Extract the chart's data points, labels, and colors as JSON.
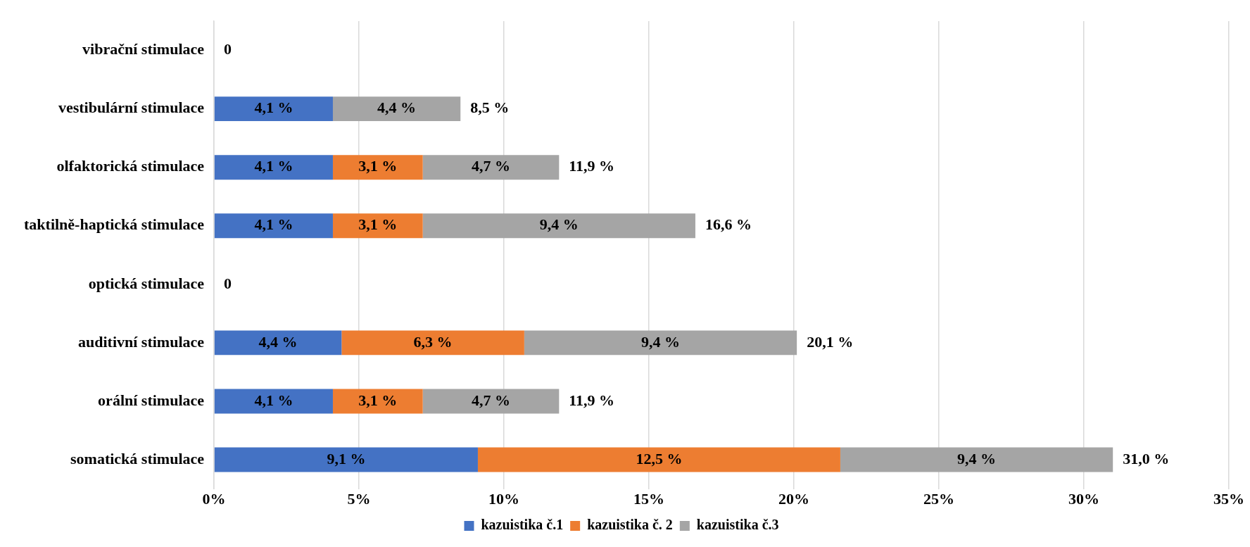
{
  "chart_data": {
    "type": "bar",
    "orientation": "horizontal",
    "stacked": true,
    "categories": [
      "vibrační stimulace",
      "vestibulární stimulace",
      "olfaktorická stimulace",
      "taktilně-haptická stimulace",
      "optická stimulace",
      "auditivní stimulace",
      "orální stimulace",
      "somatická stimulace"
    ],
    "series": [
      {
        "name": "kazuistika č.1",
        "color": "#4472c4",
        "values": [
          0,
          4.1,
          4.1,
          4.1,
          0,
          4.4,
          4.1,
          9.1
        ],
        "value_labels": [
          null,
          "4,1 %",
          "4,1 %",
          "4,1 %",
          null,
          "4,4 %",
          "4,1 %",
          "9,1 %"
        ]
      },
      {
        "name": "kazuistika č. 2",
        "color": "#ed7d31",
        "values": [
          0,
          0,
          3.1,
          3.1,
          0,
          6.3,
          3.1,
          12.5
        ],
        "value_labels": [
          null,
          null,
          "3,1 %",
          "3,1 %",
          null,
          "6,3 %",
          "3,1 %",
          "12,5 %"
        ]
      },
      {
        "name": "kazuistika č.3",
        "color": "#a5a5a5",
        "values": [
          0,
          4.4,
          4.7,
          9.4,
          0,
          9.4,
          4.7,
          9.4
        ],
        "value_labels": [
          null,
          "4,4 %",
          "4,7 %",
          "9,4 %",
          null,
          "9,4 %",
          "4,7 %",
          "9,4 %"
        ]
      }
    ],
    "totals": [
      "0",
      "8,5 %",
      "11,9 %",
      "16,6 %",
      "0",
      "20,1 %",
      "11,9 %",
      "31,0 %"
    ],
    "xlim": [
      0,
      35
    ],
    "xticks": [
      {
        "value": 0,
        "label": "0%"
      },
      {
        "value": 5,
        "label": "5%"
      },
      {
        "value": 10,
        "label": "10%"
      },
      {
        "value": 15,
        "label": "15%"
      },
      {
        "value": 20,
        "label": "20%"
      },
      {
        "value": 25,
        "label": "25%"
      },
      {
        "value": 30,
        "label": "30%"
      },
      {
        "value": 35,
        "label": "35%"
      }
    ],
    "grid": "x",
    "legend": "bottom"
  }
}
